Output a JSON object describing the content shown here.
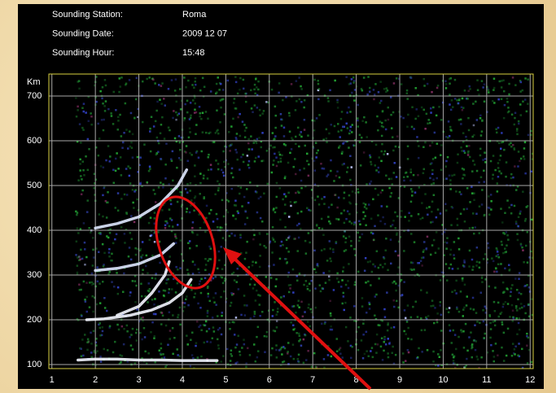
{
  "chart_data": {
    "type": "ionogram",
    "info": [
      {
        "label": "Sounding Station:",
        "value": "Roma"
      },
      {
        "label": "Sounding Date:",
        "value": "2009 12 07"
      },
      {
        "label": "Sounding Hour:",
        "value": "15:48"
      }
    ],
    "ylabel": "Km",
    "xlim": [
      0.93,
      12.07
    ],
    "ylim": [
      91,
      749
    ],
    "xticks": [
      1,
      2,
      3,
      4,
      5,
      6,
      7,
      8,
      9,
      10,
      11,
      12
    ],
    "yticks": [
      100,
      200,
      300,
      400,
      500,
      600,
      700
    ],
    "grid": true,
    "series": [
      {
        "color": "#f4f6ff",
        "x": [
          1.6,
          2.0,
          2.5,
          3.0,
          3.5,
          4.0,
          4.5,
          4.8
        ],
        "values": [
          110,
          112,
          112,
          110,
          110,
          109,
          109,
          109
        ]
      },
      {
        "color": "#f4f6ff",
        "x": [
          1.8,
          2.2,
          2.8,
          3.3,
          3.7,
          4.0,
          4.2
        ],
        "values": [
          200,
          202,
          210,
          222,
          238,
          260,
          290
        ]
      },
      {
        "color": "#f4f6ff",
        "x": [
          2.5,
          3.0,
          3.3,
          3.6,
          3.7
        ],
        "values": [
          210,
          230,
          260,
          300,
          330
        ]
      },
      {
        "color": "#dfe8ff",
        "x": [
          2.0,
          2.5,
          3.0,
          3.5,
          3.8
        ],
        "values": [
          310,
          315,
          325,
          345,
          370
        ]
      },
      {
        "color": "#dfe8ff",
        "x": [
          2.0,
          2.5,
          3.0,
          3.5,
          3.9,
          4.1
        ],
        "values": [
          405,
          415,
          430,
          460,
          500,
          535
        ]
      }
    ]
  }
}
